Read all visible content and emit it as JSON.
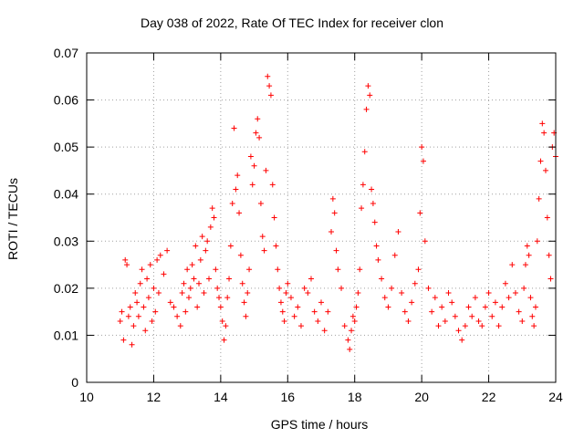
{
  "chart_data": {
    "type": "scatter",
    "title": "Day 038 of 2022, Rate Of TEC Index for receiver clon",
    "xlabel": "GPS time / hours",
    "ylabel": "ROTI / TECUs",
    "xlim": [
      10,
      24
    ],
    "ylim": [
      0,
      0.07
    ],
    "xticks": [
      "10",
      "12",
      "14",
      "16",
      "18",
      "20",
      "22",
      "24"
    ],
    "yticks": [
      "0",
      "0.01",
      "0.02",
      "0.03",
      "0.04",
      "0.05",
      "0.06",
      "0.07"
    ],
    "grid": true,
    "marker": "+",
    "color": "#ff0000",
    "points": [
      [
        11.0,
        0.013
      ],
      [
        11.05,
        0.015
      ],
      [
        11.1,
        0.009
      ],
      [
        11.15,
        0.026
      ],
      [
        11.2,
        0.025
      ],
      [
        11.25,
        0.014
      ],
      [
        11.3,
        0.016
      ],
      [
        11.35,
        0.008
      ],
      [
        11.4,
        0.012
      ],
      [
        11.45,
        0.019
      ],
      [
        11.5,
        0.017
      ],
      [
        11.55,
        0.014
      ],
      [
        11.6,
        0.021
      ],
      [
        11.65,
        0.024
      ],
      [
        11.7,
        0.016
      ],
      [
        11.75,
        0.011
      ],
      [
        11.8,
        0.022
      ],
      [
        11.85,
        0.018
      ],
      [
        11.9,
        0.025
      ],
      [
        11.95,
        0.013
      ],
      [
        12.0,
        0.02
      ],
      [
        12.05,
        0.015
      ],
      [
        12.1,
        0.026
      ],
      [
        12.15,
        0.019
      ],
      [
        12.2,
        0.027
      ],
      [
        12.3,
        0.023
      ],
      [
        12.4,
        0.028
      ],
      [
        12.5,
        0.017
      ],
      [
        12.6,
        0.016
      ],
      [
        12.7,
        0.014
      ],
      [
        12.8,
        0.012
      ],
      [
        12.85,
        0.019
      ],
      [
        12.9,
        0.021
      ],
      [
        12.95,
        0.015
      ],
      [
        13.0,
        0.024
      ],
      [
        13.05,
        0.018
      ],
      [
        13.1,
        0.02
      ],
      [
        13.15,
        0.025
      ],
      [
        13.2,
        0.022
      ],
      [
        13.25,
        0.029
      ],
      [
        13.3,
        0.016
      ],
      [
        13.35,
        0.021
      ],
      [
        13.4,
        0.026
      ],
      [
        13.45,
        0.031
      ],
      [
        13.5,
        0.019
      ],
      [
        13.55,
        0.028
      ],
      [
        13.6,
        0.03
      ],
      [
        13.65,
        0.022
      ],
      [
        13.7,
        0.033
      ],
      [
        13.75,
        0.037
      ],
      [
        13.8,
        0.035
      ],
      [
        13.85,
        0.024
      ],
      [
        13.9,
        0.02
      ],
      [
        13.95,
        0.018
      ],
      [
        14.0,
        0.016
      ],
      [
        14.05,
        0.013
      ],
      [
        14.1,
        0.009
      ],
      [
        14.15,
        0.012
      ],
      [
        14.2,
        0.018
      ],
      [
        14.25,
        0.022
      ],
      [
        14.3,
        0.029
      ],
      [
        14.35,
        0.038
      ],
      [
        14.4,
        0.054
      ],
      [
        14.45,
        0.041
      ],
      [
        14.5,
        0.044
      ],
      [
        14.55,
        0.036
      ],
      [
        14.6,
        0.027
      ],
      [
        14.65,
        0.021
      ],
      [
        14.7,
        0.017
      ],
      [
        14.75,
        0.014
      ],
      [
        14.8,
        0.019
      ],
      [
        14.85,
        0.024
      ],
      [
        14.9,
        0.048
      ],
      [
        14.95,
        0.042
      ],
      [
        15.0,
        0.046
      ],
      [
        15.05,
        0.053
      ],
      [
        15.1,
        0.056
      ],
      [
        15.15,
        0.052
      ],
      [
        15.2,
        0.038
      ],
      [
        15.25,
        0.031
      ],
      [
        15.3,
        0.028
      ],
      [
        15.35,
        0.045
      ],
      [
        15.4,
        0.065
      ],
      [
        15.45,
        0.063
      ],
      [
        15.5,
        0.061
      ],
      [
        15.55,
        0.042
      ],
      [
        15.6,
        0.035
      ],
      [
        15.65,
        0.029
      ],
      [
        15.7,
        0.024
      ],
      [
        15.75,
        0.02
      ],
      [
        15.8,
        0.017
      ],
      [
        15.85,
        0.015
      ],
      [
        15.9,
        0.013
      ],
      [
        15.95,
        0.019
      ],
      [
        16.0,
        0.021
      ],
      [
        16.1,
        0.018
      ],
      [
        16.2,
        0.014
      ],
      [
        16.3,
        0.016
      ],
      [
        16.4,
        0.012
      ],
      [
        16.5,
        0.02
      ],
      [
        16.6,
        0.019
      ],
      [
        16.7,
        0.022
      ],
      [
        16.8,
        0.015
      ],
      [
        16.9,
        0.013
      ],
      [
        17.0,
        0.017
      ],
      [
        17.1,
        0.011
      ],
      [
        17.2,
        0.015
      ],
      [
        17.3,
        0.032
      ],
      [
        17.35,
        0.039
      ],
      [
        17.4,
        0.036
      ],
      [
        17.45,
        0.028
      ],
      [
        17.5,
        0.024
      ],
      [
        17.6,
        0.02
      ],
      [
        17.7,
        0.012
      ],
      [
        17.8,
        0.009
      ],
      [
        17.85,
        0.007
      ],
      [
        17.9,
        0.011
      ],
      [
        17.95,
        0.014
      ],
      [
        18.0,
        0.013
      ],
      [
        18.05,
        0.016
      ],
      [
        18.1,
        0.019
      ],
      [
        18.15,
        0.024
      ],
      [
        18.2,
        0.037
      ],
      [
        18.25,
        0.042
      ],
      [
        18.3,
        0.049
      ],
      [
        18.35,
        0.058
      ],
      [
        18.4,
        0.063
      ],
      [
        18.45,
        0.061
      ],
      [
        18.5,
        0.041
      ],
      [
        18.55,
        0.038
      ],
      [
        18.6,
        0.034
      ],
      [
        18.65,
        0.029
      ],
      [
        18.7,
        0.026
      ],
      [
        18.8,
        0.022
      ],
      [
        18.9,
        0.018
      ],
      [
        19.0,
        0.016
      ],
      [
        19.1,
        0.02
      ],
      [
        19.2,
        0.027
      ],
      [
        19.3,
        0.032
      ],
      [
        19.4,
        0.019
      ],
      [
        19.5,
        0.015
      ],
      [
        19.6,
        0.013
      ],
      [
        19.7,
        0.017
      ],
      [
        19.8,
        0.021
      ],
      [
        19.9,
        0.024
      ],
      [
        19.95,
        0.036
      ],
      [
        20.0,
        0.05
      ],
      [
        20.05,
        0.047
      ],
      [
        20.1,
        0.03
      ],
      [
        20.2,
        0.02
      ],
      [
        20.3,
        0.015
      ],
      [
        20.4,
        0.018
      ],
      [
        20.5,
        0.012
      ],
      [
        20.6,
        0.016
      ],
      [
        20.7,
        0.013
      ],
      [
        20.8,
        0.019
      ],
      [
        20.9,
        0.017
      ],
      [
        21.0,
        0.014
      ],
      [
        21.1,
        0.011
      ],
      [
        21.2,
        0.009
      ],
      [
        21.3,
        0.012
      ],
      [
        21.4,
        0.016
      ],
      [
        21.5,
        0.014
      ],
      [
        21.6,
        0.018
      ],
      [
        21.7,
        0.013
      ],
      [
        21.8,
        0.012
      ],
      [
        21.9,
        0.016
      ],
      [
        22.0,
        0.019
      ],
      [
        22.1,
        0.014
      ],
      [
        22.2,
        0.017
      ],
      [
        22.3,
        0.012
      ],
      [
        22.4,
        0.016
      ],
      [
        22.5,
        0.021
      ],
      [
        22.6,
        0.018
      ],
      [
        22.7,
        0.025
      ],
      [
        22.8,
        0.019
      ],
      [
        22.9,
        0.015
      ],
      [
        23.0,
        0.013
      ],
      [
        23.05,
        0.02
      ],
      [
        23.1,
        0.025
      ],
      [
        23.15,
        0.029
      ],
      [
        23.2,
        0.027
      ],
      [
        23.25,
        0.018
      ],
      [
        23.3,
        0.014
      ],
      [
        23.35,
        0.012
      ],
      [
        23.4,
        0.016
      ],
      [
        23.45,
        0.03
      ],
      [
        23.5,
        0.039
      ],
      [
        23.55,
        0.047
      ],
      [
        23.6,
        0.055
      ],
      [
        23.65,
        0.053
      ],
      [
        23.7,
        0.045
      ],
      [
        23.75,
        0.035
      ],
      [
        23.8,
        0.027
      ],
      [
        23.85,
        0.022
      ],
      [
        23.9,
        0.05
      ],
      [
        23.95,
        0.053
      ],
      [
        24.0,
        0.048
      ]
    ]
  }
}
